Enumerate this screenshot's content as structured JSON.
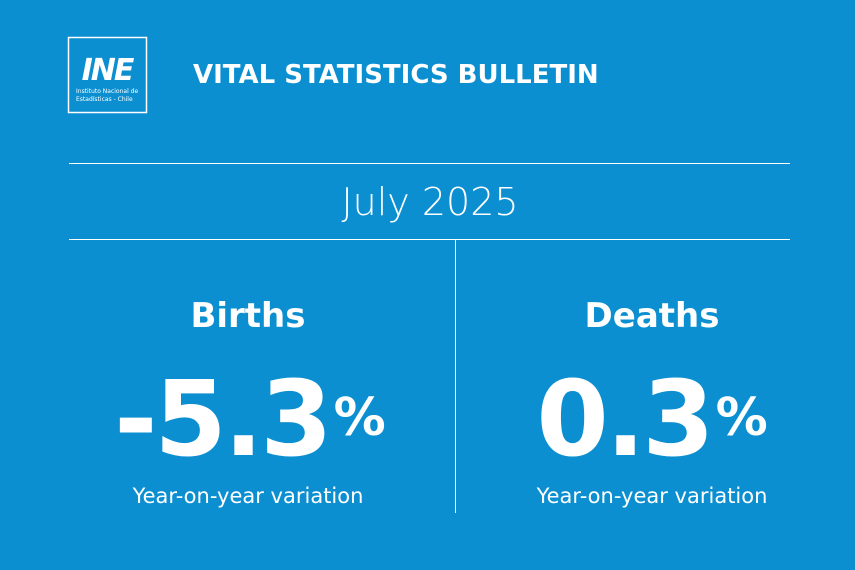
{
  "logo": {
    "mark": "INE",
    "line1": "Instituto Nacional de",
    "line2": "Estadísticas - Chile"
  },
  "header": {
    "title": "VITAL STATISTICS BULLETIN"
  },
  "period": "July 2025",
  "stats": [
    {
      "label": "Births",
      "value": -5.3,
      "unit": "%",
      "caption": "Year-on-year variation"
    },
    {
      "label": "Deaths",
      "value": 0.3,
      "unit": "%",
      "caption": "Year-on-year variation"
    }
  ]
}
